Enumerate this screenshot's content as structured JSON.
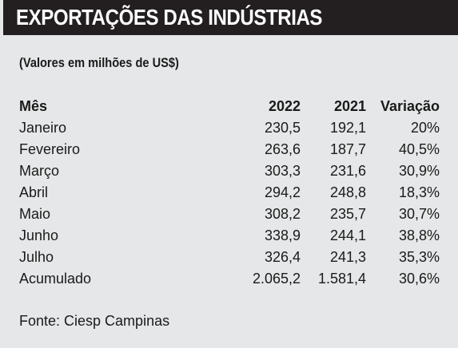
{
  "title": "EXPORTAÇÕES DAS INDÚSTRIAS",
  "subtitle": "(Valores em milhões de US$)",
  "source": "Fonte: Ciesp Campinas",
  "colors": {
    "title_bg": "#231f20",
    "title_text": "#ffffff",
    "panel_bg": "#e6e7e8"
  },
  "chart_data": {
    "type": "table",
    "title": "EXPORTAÇÕES DAS INDÚSTRIAS",
    "subtitle": "(Valores em milhões de US$)",
    "columns": [
      "Mês",
      "2022",
      "2021",
      "Variação"
    ],
    "rows": [
      [
        "Janeiro",
        "230,5",
        "192,1",
        "20%"
      ],
      [
        "Fevereiro",
        "263,6",
        "187,7",
        "40,5%"
      ],
      [
        "Março",
        "303,3",
        "231,6",
        "30,9%"
      ],
      [
        "Abril",
        "294,2",
        "248,8",
        "18,3%"
      ],
      [
        "Maio",
        "308,2",
        "235,7",
        "30,7%"
      ],
      [
        "Junho",
        "338,9",
        "244,1",
        "38,8%"
      ],
      [
        "Julho",
        "326,4",
        "241,3",
        "35,3%"
      ],
      [
        "Acumulado",
        "2.065,2",
        "1.581,4",
        "30,6%"
      ]
    ],
    "source": "Fonte: Ciesp Campinas"
  }
}
